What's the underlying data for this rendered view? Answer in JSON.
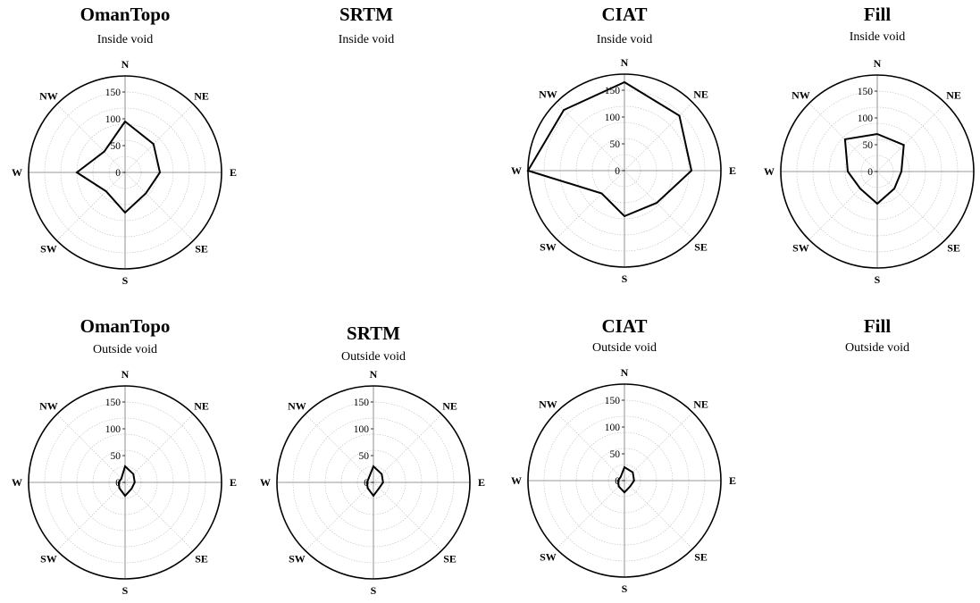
{
  "chart_data": [
    {
      "type": "radar",
      "title": "OmanTopo",
      "subtitle": "Inside void",
      "categories": [
        "N",
        "NE",
        "E",
        "SE",
        "S",
        "SW",
        "W",
        "NW"
      ],
      "rlim": [
        0,
        180
      ],
      "rticks": [
        0,
        50,
        100,
        150
      ],
      "values": [
        95,
        75,
        65,
        55,
        75,
        50,
        90,
        55
      ]
    },
    {
      "type": "radar",
      "title": "SRTM",
      "subtitle": "Inside void",
      "categories": [
        "N",
        "NE",
        "E",
        "SE",
        "S",
        "SW",
        "W",
        "NW"
      ],
      "rlim": [
        0,
        180
      ],
      "rticks": [
        0,
        50,
        100,
        150
      ],
      "values": null
    },
    {
      "type": "radar",
      "title": "CIAT",
      "subtitle": "Inside void",
      "categories": [
        "N",
        "NE",
        "E",
        "SE",
        "S",
        "SW",
        "W",
        "NW"
      ],
      "rlim": [
        0,
        180
      ],
      "rticks": [
        0,
        50,
        100,
        150
      ],
      "values": [
        165,
        145,
        125,
        85,
        85,
        60,
        180,
        160
      ]
    },
    {
      "type": "radar",
      "title": "Fill",
      "subtitle": "Inside void",
      "categories": [
        "N",
        "NE",
        "E",
        "SE",
        "S",
        "SW",
        "W",
        "NW"
      ],
      "rlim": [
        0,
        180
      ],
      "rticks": [
        0,
        50,
        100,
        150
      ],
      "values": [
        70,
        70,
        45,
        45,
        60,
        45,
        55,
        85
      ]
    },
    {
      "type": "radar",
      "title": "OmanTopo",
      "subtitle": "Outside void",
      "categories": [
        "N",
        "NE",
        "E",
        "SE",
        "S",
        "SW",
        "W",
        "NW"
      ],
      "rlim": [
        0,
        180
      ],
      "rticks": [
        0,
        50,
        100,
        150
      ],
      "values": [
        30,
        22,
        18,
        17,
        25,
        15,
        12,
        10
      ]
    },
    {
      "type": "radar",
      "title": "SRTM",
      "subtitle": "Outside void",
      "categories": [
        "N",
        "NE",
        "E",
        "SE",
        "S",
        "SW",
        "W",
        "NW"
      ],
      "rlim": [
        0,
        180
      ],
      "rticks": [
        0,
        50,
        100,
        150
      ],
      "values": [
        30,
        22,
        18,
        15,
        25,
        15,
        12,
        12
      ]
    },
    {
      "type": "radar",
      "title": "CIAT",
      "subtitle": "Outside void",
      "categories": [
        "N",
        "NE",
        "E",
        "SE",
        "S",
        "SW",
        "W",
        "NW"
      ],
      "rlim": [
        0,
        180
      ],
      "rticks": [
        0,
        50,
        100,
        150
      ],
      "values": [
        25,
        22,
        18,
        15,
        22,
        15,
        12,
        10
      ]
    },
    {
      "type": "radar",
      "title": "Fill",
      "subtitle": "Outside void",
      "categories": [
        "N",
        "NE",
        "E",
        "SE",
        "S",
        "SW",
        "W",
        "NW"
      ],
      "rlim": [
        0,
        180
      ],
      "rticks": [
        0,
        50,
        100,
        150
      ],
      "values": null
    }
  ]
}
